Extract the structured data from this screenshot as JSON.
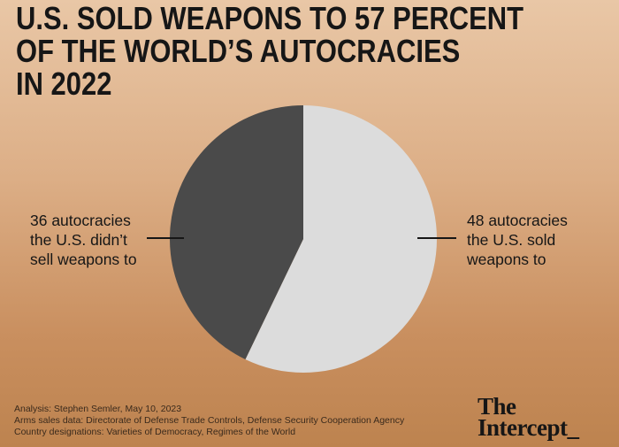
{
  "title_lines": [
    "U.S. SOLD WEAPONS TO 57 PERCENT",
    "OF THE WORLD’S AUTOCRACIES",
    "IN 2022"
  ],
  "chart_data": {
    "type": "pie",
    "title": "U.S. SOLD WEAPONS TO 57 PERCENT OF THE WORLD’S AUTOCRACIES IN 2022",
    "slices": [
      {
        "value": 48,
        "label_lines": [
          "48 autocracies",
          "the U.S. sold",
          "weapons to"
        ],
        "color": "#dcdcdc"
      },
      {
        "value": 36,
        "label_lines": [
          "36 autocracies",
          "the U.S. didn’t",
          "sell weapons to"
        ],
        "color": "#4a4a4a"
      }
    ],
    "start_angle": "12 o'clock",
    "direction": "clockwise",
    "label_placement": "outside, with leader lines"
  },
  "source_lines": [
    "Analysis: Stephen Semler, May 10, 2023",
    "Arms sales data: Directorate of Defense Trade Controls, Defense Security Cooperation Agency",
    "Country designations: Varieties of Democracy, Regimes of the World"
  ],
  "logo_lines": [
    "The",
    "Intercept_"
  ],
  "colors": {
    "background_top": "#e9c7a6",
    "background_bottom": "#bd834f",
    "text": "#161616"
  }
}
